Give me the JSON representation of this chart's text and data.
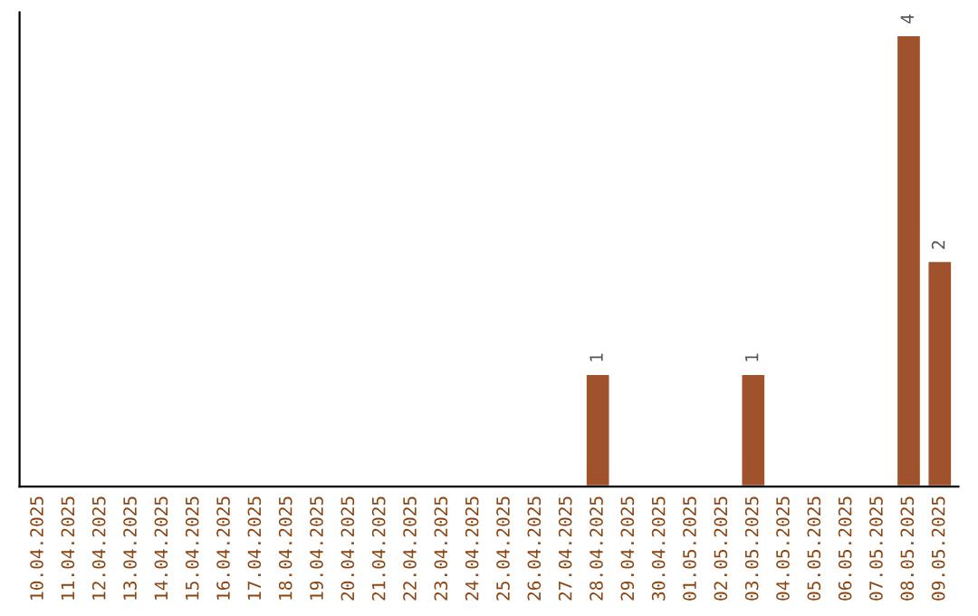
{
  "chart_data": {
    "type": "bar",
    "categories": [
      "10.04.2025",
      "11.04.2025",
      "12.04.2025",
      "13.04.2025",
      "14.04.2025",
      "15.04.2025",
      "16.04.2025",
      "17.04.2025",
      "18.04.2025",
      "19.04.2025",
      "20.04.2025",
      "21.04.2025",
      "22.04.2025",
      "23.04.2025",
      "24.04.2025",
      "25.04.2025",
      "26.04.2025",
      "27.04.2025",
      "28.04.2025",
      "29.04.2025",
      "30.04.2025",
      "01.05.2025",
      "02.05.2025",
      "03.05.2025",
      "04.05.2025",
      "05.05.2025",
      "06.05.2025",
      "07.05.2025",
      "08.05.2025",
      "09.05.2025"
    ],
    "values": [
      null,
      null,
      null,
      null,
      null,
      null,
      null,
      null,
      null,
      null,
      null,
      null,
      null,
      null,
      null,
      null,
      null,
      null,
      1,
      null,
      null,
      null,
      null,
      1,
      null,
      null,
      null,
      null,
      4,
      2
    ],
    "color": "#a0522d",
    "data_labels": true,
    "tick_labels": "x",
    "grid": false,
    "legend": false
  }
}
